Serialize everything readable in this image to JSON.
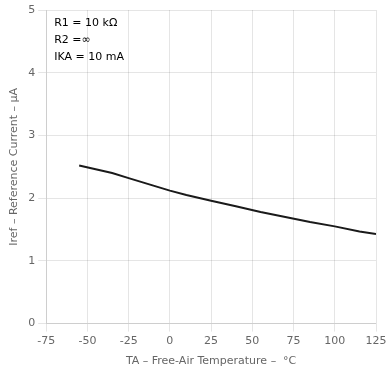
{
  "chart_data": {
    "type": "line",
    "xlabel": "TA – Free-Air Temperature –  °C",
    "ylabel": "Iref – Reference Current – μA",
    "annotations": [
      "R1 = 10 kΩ",
      "R2 =∞",
      "IKA = 10 mA"
    ],
    "x": [
      -55,
      -45,
      -35,
      -25,
      -10,
      0,
      10,
      25,
      40,
      55,
      70,
      85,
      100,
      115,
      125
    ],
    "values": [
      2.52,
      2.46,
      2.4,
      2.32,
      2.2,
      2.12,
      2.05,
      1.96,
      1.87,
      1.78,
      1.7,
      1.62,
      1.55,
      1.47,
      1.43
    ],
    "color": "#1a1a1a",
    "xlim": [
      -75,
      125
    ],
    "ylim": [
      0,
      5
    ],
    "xticks": [
      -75,
      -50,
      -25,
      0,
      25,
      50,
      75,
      100,
      125
    ],
    "yticks": [
      0,
      1,
      2,
      3,
      4,
      5
    ],
    "grid": true
  }
}
